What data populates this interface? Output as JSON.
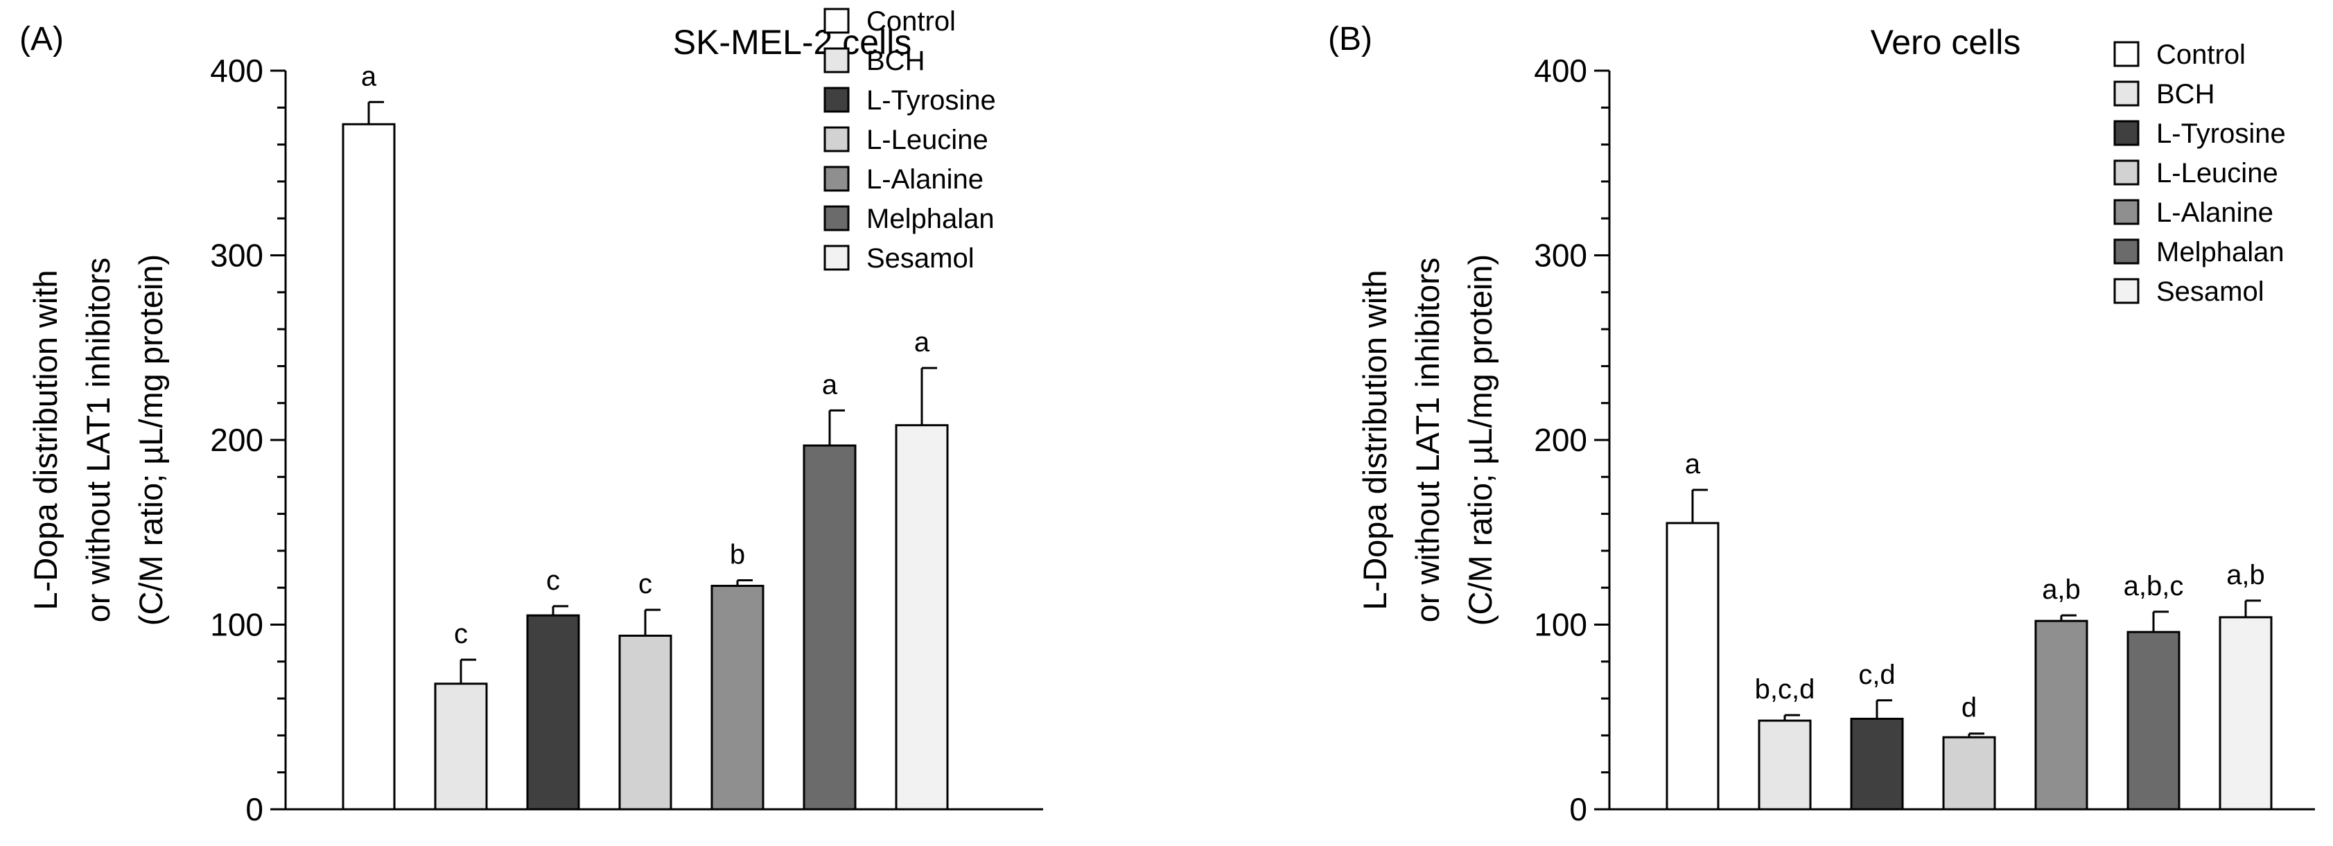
{
  "colors": {
    "Control": "#ffffff",
    "BCH": "#e6e6e6",
    "L-Tyrosine": "#404040",
    "L-Leucine": "#d2d2d2",
    "L-Alanine": "#8f8f8f",
    "Melphalan": "#6b6b6b",
    "Sesamol": "#f2f2f2"
  },
  "chart_data": [
    {
      "type": "bar",
      "panel_label": "(A)",
      "title": "SK-MEL-2 cells",
      "ylabel_lines": [
        "L-Dopa distribution with",
        "or without LAT1 inhibitors",
        "(C/M ratio; µL/mg protein)"
      ],
      "xlabel": "",
      "ylim": [
        0,
        400
      ],
      "yticks": [
        0,
        100,
        200,
        300,
        400
      ],
      "categories": [
        "Control",
        "BCH",
        "L-Tyrosine",
        "L-Leucine",
        "L-Alanine",
        "Melphalan",
        "Sesamol"
      ],
      "values": [
        371,
        68,
        105,
        94,
        121,
        197,
        208
      ],
      "errors": [
        12,
        13,
        5,
        14,
        3,
        19,
        31
      ],
      "significance": [
        "a",
        "c",
        "c",
        "c",
        "b",
        "a",
        "a"
      ],
      "legend": [
        "Control",
        "BCH",
        "L-Tyrosine",
        "L-Leucine",
        "L-Alanine",
        "Melphalan",
        "Sesamol"
      ],
      "legend_position": "top-right"
    },
    {
      "type": "bar",
      "panel_label": "(B)",
      "title": "Vero cells",
      "ylabel_lines": [
        "L-Dopa distribution with",
        "or without LAT1 inhibitors",
        "(C/M ratio; µL/mg protein)"
      ],
      "xlabel": "",
      "ylim": [
        0,
        400
      ],
      "yticks": [
        0,
        100,
        200,
        300,
        400
      ],
      "categories": [
        "Control",
        "BCH",
        "L-Tyrosine",
        "L-Leucine",
        "L-Alanine",
        "Melphalan",
        "Sesamol"
      ],
      "values": [
        155,
        48,
        49,
        39,
        102,
        96,
        104
      ],
      "errors": [
        18,
        3,
        10,
        2,
        3,
        11,
        9
      ],
      "significance": [
        "a",
        "b,c,d",
        "c,d",
        "d",
        "a,b",
        "a,b,c",
        "a,b"
      ],
      "legend": [
        "Control",
        "BCH",
        "L-Tyrosine",
        "L-Leucine",
        "L-Alanine",
        "Melphalan",
        "Sesamol"
      ],
      "legend_position": "top-right"
    }
  ]
}
